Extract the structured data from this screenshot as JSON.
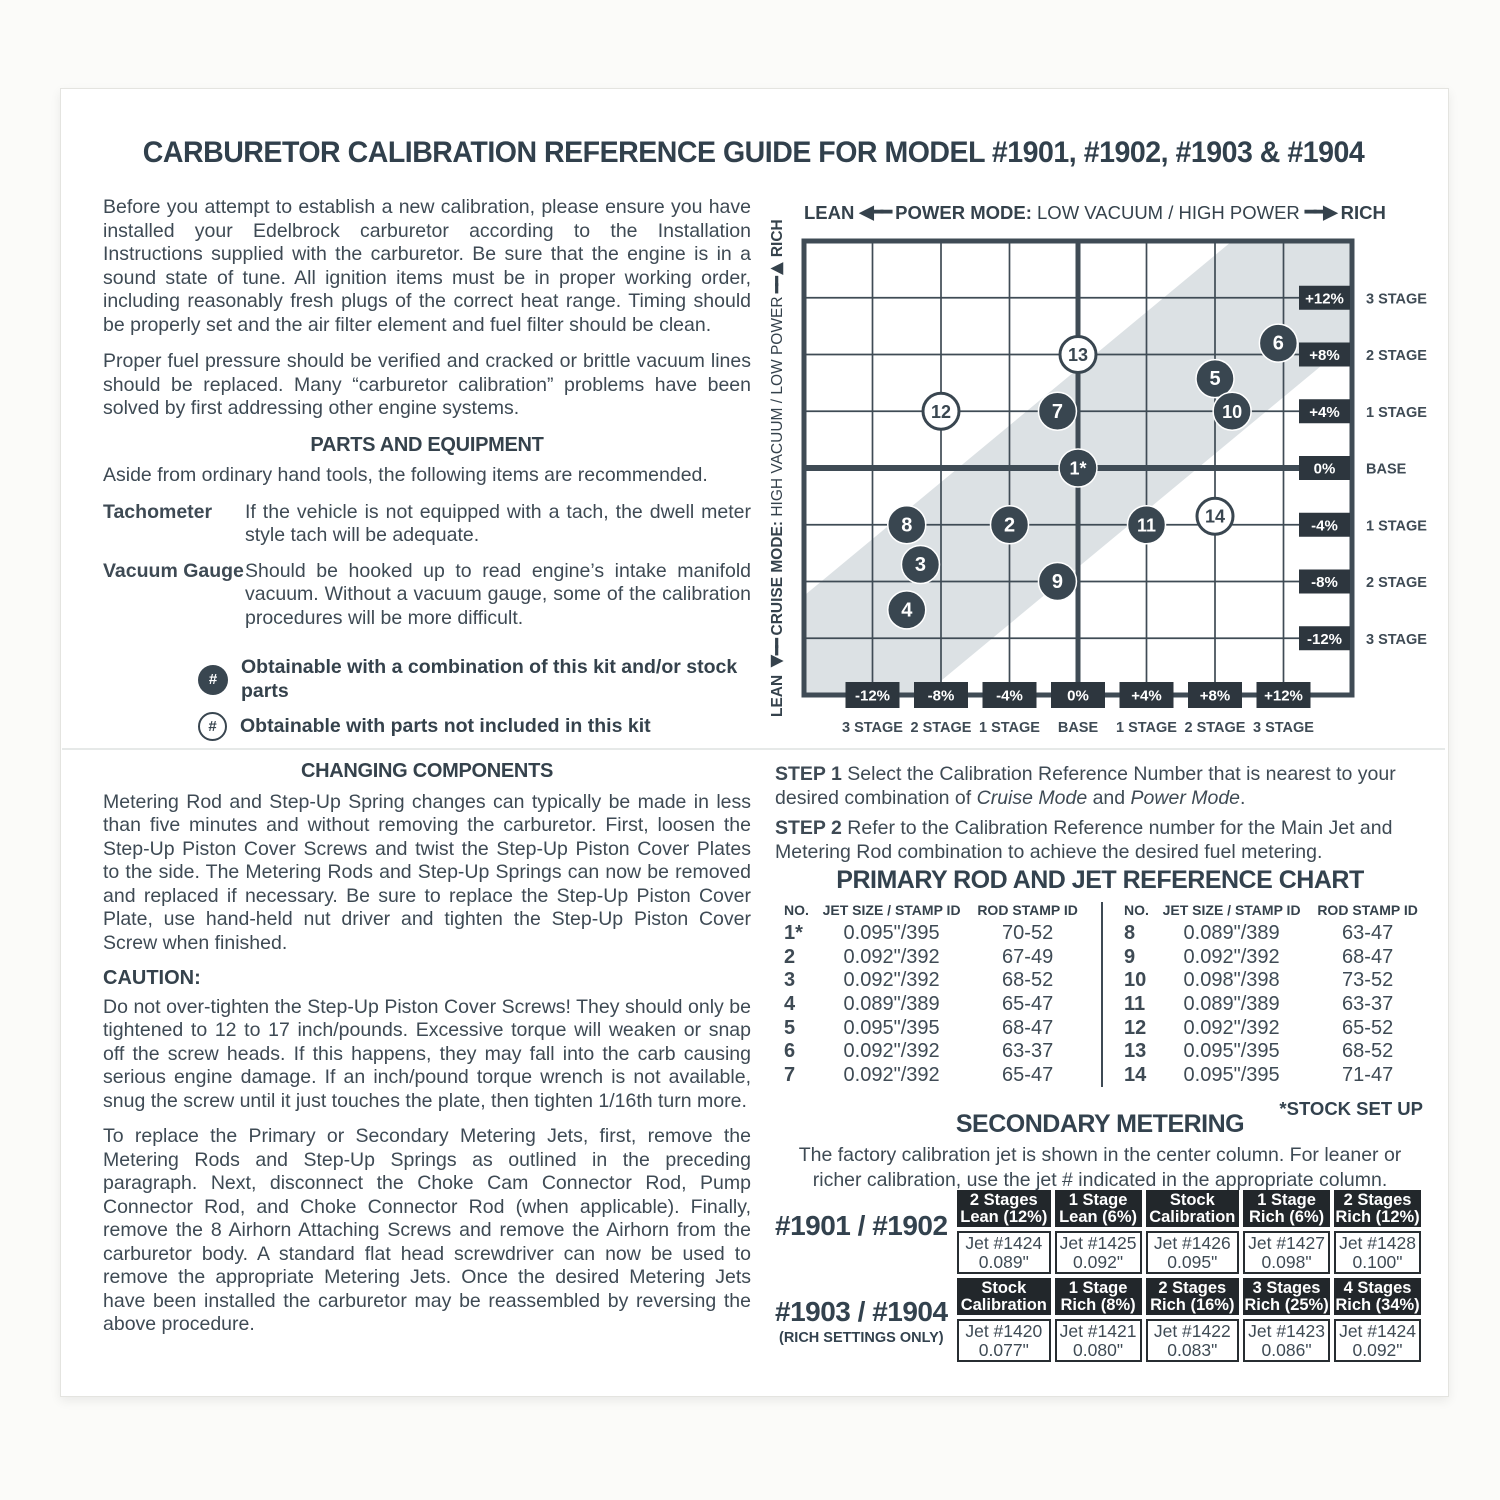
{
  "page": {
    "title": "CARBURETOR CALIBRATION REFERENCE GUIDE FOR MODEL #1901, #1902, #1903 & #1904"
  },
  "intro": {
    "p1": "Before you attempt to establish a new calibration, please ensure you have installed your Edelbrock carburetor according to the Installation Instructions supplied with the carburetor. Be sure that the engine is in a sound state of tune. All ignition items must be in proper working order, including reasonably fresh plugs of the correct heat range. Timing should be properly set and the air filter element and fuel filter should be clean.",
    "p2": "Proper fuel pressure should be verified and cracked or brittle vacuum lines should be replaced. Many “carburetor calibration” problems have been solved by first addressing other engine systems."
  },
  "parts": {
    "heading": "PARTS AND EQUIPMENT",
    "intro": "Aside from ordinary hand tools, the following items are recommended.",
    "items": [
      {
        "label": "Tachometer",
        "desc": "If the vehicle is not equipped with a tach, the dwell meter style tach will be adequate."
      },
      {
        "label": "Vacuum Gauge",
        "desc": "Should be hooked up to read engine’s intake manifold vacuum. Without a vacuum gauge, some of the calibration procedures will be more difficult."
      }
    ]
  },
  "legend": [
    {
      "symbol": "#",
      "filled": true,
      "text": "Obtainable with a combination of this kit and/or stock parts"
    },
    {
      "symbol": "#",
      "filled": false,
      "text": "Obtainable with parts not included in this kit"
    }
  ],
  "chart": {
    "top_axis": {
      "lean": "LEAN",
      "arrow_left": "◀━━",
      "mode_bold": "POWER MODE:",
      "mode_rest": " LOW VACUUM / HIGH POWER",
      "arrow_right": "━━▶",
      "rich": "RICH"
    },
    "left_axis": {
      "lean": "LEAN",
      "arrow_left": "◀━━",
      "mode_bold": "CRUISE MODE:",
      "mode_rest": " HIGH VACUUM / LOW POWER",
      "arrow_right": "━━▶",
      "rich": "RICH"
    },
    "x_ticks": [
      {
        "u": -12,
        "pct": "-12%",
        "stage": "3 STAGE"
      },
      {
        "u": -8,
        "pct": "-8%",
        "stage": "2 STAGE"
      },
      {
        "u": -4,
        "pct": "-4%",
        "stage": "1 STAGE"
      },
      {
        "u": 0,
        "pct": "0%",
        "stage": "BASE"
      },
      {
        "u": 4,
        "pct": "+4%",
        "stage": "1 STAGE"
      },
      {
        "u": 8,
        "pct": "+8%",
        "stage": "2 STAGE"
      },
      {
        "u": 12,
        "pct": "+12%",
        "stage": "3 STAGE"
      }
    ],
    "y_ticks": [
      {
        "v": 12,
        "pct": "+12%",
        "stage": "3 STAGE"
      },
      {
        "v": 8,
        "pct": "+8%",
        "stage": "2 STAGE"
      },
      {
        "v": 4,
        "pct": "+4%",
        "stage": "1 STAGE"
      },
      {
        "v": 0,
        "pct": "0%",
        "stage": "BASE"
      },
      {
        "v": -4,
        "pct": "-4%",
        "stage": "1 STAGE"
      },
      {
        "v": -8,
        "pct": "-8%",
        "stage": "2 STAGE"
      },
      {
        "v": -12,
        "pct": "-12%",
        "stage": "3 STAGE"
      }
    ],
    "band": [
      [
        -16,
        -9
      ],
      [
        9,
        16
      ],
      [
        16,
        16
      ],
      [
        16,
        9
      ],
      [
        -9,
        -16
      ],
      [
        -16,
        -16
      ]
    ],
    "points": [
      {
        "n": "1*",
        "x": 0,
        "y": 0,
        "filled": true
      },
      {
        "n": "2",
        "x": -4,
        "y": -4,
        "filled": true
      },
      {
        "n": "3",
        "x": -9.2,
        "y": -6.8,
        "filled": true
      },
      {
        "n": "4",
        "x": -10,
        "y": -10,
        "filled": true
      },
      {
        "n": "5",
        "x": 8,
        "y": 6.3,
        "filled": true
      },
      {
        "n": "6",
        "x": 11.7,
        "y": 8.8,
        "filled": true
      },
      {
        "n": "7",
        "x": -1.2,
        "y": 4,
        "filled": true
      },
      {
        "n": "8",
        "x": -10,
        "y": -4,
        "filled": true
      },
      {
        "n": "9",
        "x": -1.2,
        "y": -8,
        "filled": true
      },
      {
        "n": "10",
        "x": 9,
        "y": 4,
        "filled": true
      },
      {
        "n": "11",
        "x": 4,
        "y": -4,
        "filled": true
      },
      {
        "n": "12",
        "x": -8,
        "y": 4,
        "filled": false
      },
      {
        "n": "13",
        "x": 0,
        "y": 8,
        "filled": false
      },
      {
        "n": "14",
        "x": 8,
        "y": -3.4,
        "filled": false
      }
    ],
    "colors": {
      "ink": "#3f4b55",
      "band": "#dce1e4",
      "box": "#2d363e",
      "circle": "#394650"
    }
  },
  "steps": [
    {
      "label": "STEP 1",
      "t1": " Select the Calibration Reference Number that is nearest to your desired combination of ",
      "i1": "Cruise Mode",
      "t2": " and ",
      "i2": "Power Mode",
      "t3": "."
    },
    {
      "label": "STEP 2",
      "t1": " Refer to the Calibration Reference number for the Main Jet and Metering Rod combination to achieve the desired fuel metering.",
      "i1": "",
      "t2": "",
      "i2": "",
      "t3": ""
    }
  ],
  "changing": {
    "heading": "CHANGING COMPONENTS",
    "p1": "Metering Rod and Step-Up Spring changes can typically be made in less than five minutes and without removing the carburetor. First, loosen the Step-Up Piston Cover Screws and twist the Step-Up Piston Cover Plates to the side. The Metering Rods and Step-Up Springs can now be removed and replaced if necessary. Be sure to replace the Step-Up Piston Cover Plate, use hand-held nut driver and tighten the Step-Up Piston Cover Screw when finished.",
    "caution_heading": "CAUTION:",
    "caution": "Do not over-tighten the Step-Up Piston Cover Screws! They should only be tightened to 12 to 17 inch/pounds. Excessive torque will weaken or snap off the screw heads. If this happens, they may fall into the carb causing serious engine damage. If an inch/pound torque wrench is not available, snug the screw until it just touches the plate, then tighten 1/16th turn more.",
    "p3": "To replace the Primary or Secondary Metering Jets, first, remove the Metering Rods and Step-Up Springs as outlined in the preceding paragraph. Next, disconnect the Choke Cam Connector Rod, Pump Connector Rod, and Choke Connector Rod (when applicable). Finally, remove the 8 Airhorn Attaching Screws and remove the Airhorn from the carburetor body. A standard flat head screwdriver can now be used to remove the appropriate Metering Jets. Once the desired Metering Jets have been installed the carburetor may be reassembled by reversing the above procedure."
  },
  "primary_chart": {
    "heading": "PRIMARY ROD AND JET REFERENCE CHART",
    "headers": [
      "NO.",
      "JET SIZE / STAMP ID",
      "ROD STAMP ID"
    ],
    "rows_left": [
      [
        "1*",
        "0.095\"/395",
        "70-52"
      ],
      [
        "2",
        "0.092\"/392",
        "67-49"
      ],
      [
        "3",
        "0.092\"/392",
        "68-52"
      ],
      [
        "4",
        "0.089\"/389",
        "65-47"
      ],
      [
        "5",
        "0.095\"/395",
        "68-47"
      ],
      [
        "6",
        "0.092\"/392",
        "63-37"
      ],
      [
        "7",
        "0.092\"/392",
        "65-47"
      ]
    ],
    "rows_right": [
      [
        "8",
        "0.089\"/389",
        "63-47"
      ],
      [
        "9",
        "0.092\"/392",
        "68-47"
      ],
      [
        "10",
        "0.098\"/398",
        "73-52"
      ],
      [
        "11",
        "0.089\"/389",
        "63-37"
      ],
      [
        "12",
        "0.092\"/392",
        "65-52"
      ],
      [
        "13",
        "0.095\"/395",
        "68-52"
      ],
      [
        "14",
        "0.095\"/395",
        "71-47"
      ]
    ],
    "footnote": "*STOCK SET UP"
  },
  "secondary": {
    "heading": "SECONDARY METERING",
    "desc": "The factory calibration jet is shown in the center column. For leaner or richer calibration, use the jet # indicated in the appropriate column.",
    "groups": [
      {
        "label": "#1901 / #1902",
        "sublabel": "",
        "headers": [
          [
            "2 Stages",
            "Lean (12%)"
          ],
          [
            "1 Stage",
            "Lean (6%)"
          ],
          [
            "Stock",
            "Calibration"
          ],
          [
            "1 Stage",
            "Rich (6%)"
          ],
          [
            "2 Stages",
            "Rich (12%)"
          ]
        ],
        "values": [
          [
            "Jet #1424",
            "0.089\""
          ],
          [
            "Jet #1425",
            "0.092\""
          ],
          [
            "Jet #1426",
            "0.095\""
          ],
          [
            "Jet #1427",
            "0.098\""
          ],
          [
            "Jet #1428",
            "0.100\""
          ]
        ]
      },
      {
        "label": "#1903 / #1904",
        "sublabel": "(RICH SETTINGS ONLY)",
        "headers": [
          [
            "Stock",
            "Calibration"
          ],
          [
            "1 Stage",
            "Rich (8%)"
          ],
          [
            "2 Stages",
            "Rich (16%)"
          ],
          [
            "3 Stages",
            "Rich (25%)"
          ],
          [
            "4 Stages",
            "Rich (34%)"
          ]
        ],
        "values": [
          [
            "Jet #1420",
            "0.077\""
          ],
          [
            "Jet #1421",
            "0.080\""
          ],
          [
            "Jet #1422",
            "0.083\""
          ],
          [
            "Jet #1423",
            "0.086\""
          ],
          [
            "Jet #1424",
            "0.092\""
          ]
        ]
      }
    ]
  }
}
